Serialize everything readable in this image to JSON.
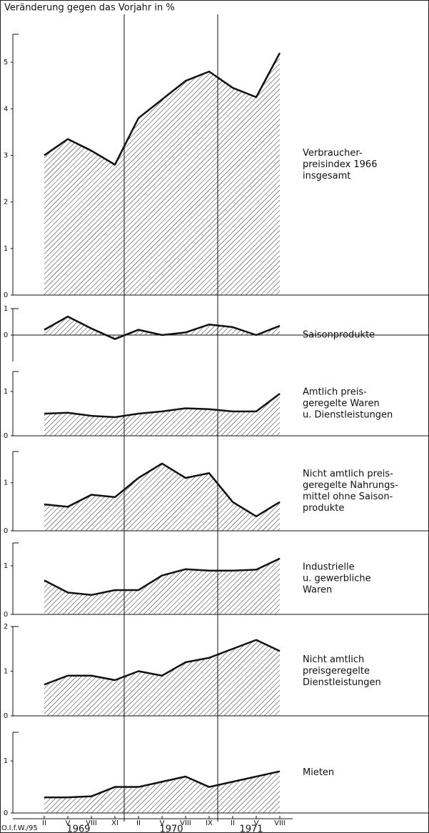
{
  "chart_data": {
    "type": "area_panels",
    "title": "Veränderung gegen das Vorjahr in %",
    "categories": [
      "II",
      "V",
      "VIII",
      "XI",
      "II",
      "V",
      "VIII",
      "IX",
      "II",
      "V",
      "VIII"
    ],
    "groups": [
      "1969",
      "1970",
      "1971"
    ],
    "source": "O.I.f.W./95",
    "panels": [
      {
        "label": [
          "Verbraucher-",
          "preisindex 1966",
          "insgesamt"
        ],
        "values": [
          3.0,
          3.35,
          3.1,
          2.8,
          3.8,
          4.2,
          4.6,
          4.8,
          4.45,
          4.25,
          5.2
        ],
        "ylim": [
          0,
          5.6
        ],
        "yticks": [
          0,
          1,
          2,
          3,
          4,
          5
        ]
      },
      {
        "label": [
          "Saisonprodukte"
        ],
        "values": [
          0.2,
          0.7,
          0.25,
          -0.15,
          0.2,
          0.0,
          0.1,
          0.4,
          0.3,
          0.0,
          0.35
        ],
        "ylim": [
          -1,
          1
        ],
        "yticks": [
          0,
          1
        ]
      },
      {
        "label": [
          "Amtlich preis-",
          "geregelte Waren",
          "u. Dienstleistungen"
        ],
        "values": [
          0.5,
          0.52,
          0.45,
          0.42,
          0.5,
          0.55,
          0.62,
          0.6,
          0.55,
          0.55,
          0.95
        ],
        "ylim": [
          0,
          1.45
        ],
        "yticks": [
          0,
          1
        ]
      },
      {
        "label": [
          "Nicht amtlich preis-",
          "geregelte Nahrungs-",
          "mittel ohne Saison-",
          "produkte"
        ],
        "values": [
          0.55,
          0.5,
          0.75,
          0.7,
          1.1,
          1.4,
          1.1,
          1.2,
          0.6,
          0.3,
          0.6
        ],
        "ylim": [
          0,
          1.65
        ],
        "yticks": [
          0,
          1
        ]
      },
      {
        "label": [
          "Industrielle",
          "u. gewerbliche",
          "Waren"
        ],
        "values": [
          0.7,
          0.45,
          0.4,
          0.5,
          0.5,
          0.8,
          0.93,
          0.9,
          0.9,
          0.92,
          1.15
        ],
        "ylim": [
          0,
          1.47
        ],
        "yticks": [
          0,
          1
        ]
      },
      {
        "label": [
          "Nicht amtlich",
          "preisgeregelte",
          "Dienstleistungen"
        ],
        "values": [
          0.7,
          0.9,
          0.9,
          0.8,
          1.0,
          0.9,
          1.2,
          1.3,
          1.5,
          1.7,
          1.45
        ],
        "ylim": [
          0,
          2
        ],
        "yticks": [
          0,
          1,
          2
        ]
      },
      {
        "label": [
          "Mieten"
        ],
        "values": [
          0.3,
          0.3,
          0.32,
          0.5,
          0.5,
          0.6,
          0.7,
          0.5,
          0.6,
          0.7,
          0.8
        ],
        "ylim": [
          0,
          1.55
        ],
        "yticks": [
          0,
          1
        ]
      }
    ]
  }
}
